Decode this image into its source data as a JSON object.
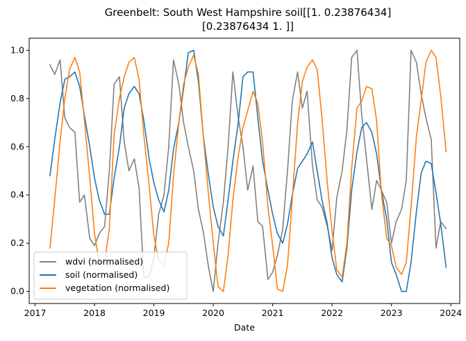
{
  "chart_data": {
    "type": "line",
    "title_lines": [
      "Greenbelt: South West Hampshire soil[[1.         0.23876434]",
      "[0.23876434 1.        ]]"
    ],
    "xlabel": "Date",
    "ylabel": "",
    "x_tick_labels": [
      "2017",
      "2018",
      "2019",
      "2020",
      "2021",
      "2022",
      "2023",
      "2024"
    ],
    "x_tick_values": [
      2017,
      2018,
      2019,
      2020,
      2021,
      2022,
      2023,
      2024
    ],
    "xlim": [
      2016.9,
      2024.15
    ],
    "y_tick_labels": [
      "0.0",
      "0.2",
      "0.4",
      "0.6",
      "0.8",
      "1.0"
    ],
    "y_tick_values": [
      0.0,
      0.2,
      0.4,
      0.6,
      0.8,
      1.0
    ],
    "ylim": [
      -0.05,
      1.05
    ],
    "grid": false,
    "legend_position": "lower-left",
    "x": [
      2017.25,
      2017.33,
      2017.42,
      2017.5,
      2017.58,
      2017.67,
      2017.75,
      2017.83,
      2017.92,
      2018.0,
      2018.08,
      2018.17,
      2018.25,
      2018.33,
      2018.42,
      2018.5,
      2018.58,
      2018.67,
      2018.75,
      2018.83,
      2018.92,
      2019.0,
      2019.08,
      2019.17,
      2019.25,
      2019.33,
      2019.42,
      2019.5,
      2019.58,
      2019.67,
      2019.75,
      2019.83,
      2019.92,
      2020.0,
      2020.08,
      2020.17,
      2020.25,
      2020.33,
      2020.42,
      2020.5,
      2020.58,
      2020.67,
      2020.75,
      2020.83,
      2020.92,
      2021.0,
      2021.08,
      2021.17,
      2021.25,
      2021.33,
      2021.42,
      2021.5,
      2021.58,
      2021.67,
      2021.75,
      2021.83,
      2021.92,
      2022.0,
      2022.08,
      2022.17,
      2022.25,
      2022.33,
      2022.42,
      2022.5,
      2022.58,
      2022.67,
      2022.75,
      2022.83,
      2022.92,
      2023.0,
      2023.08,
      2023.17,
      2023.25,
      2023.33,
      2023.42,
      2023.5,
      2023.58,
      2023.67,
      2023.75,
      2023.83,
      2023.92
    ],
    "series": [
      {
        "name": "wdvi (normalised)",
        "color": "#808080",
        "values": [
          0.94,
          0.9,
          0.96,
          0.72,
          0.68,
          0.66,
          0.37,
          0.4,
          0.22,
          0.19,
          0.24,
          0.27,
          0.5,
          0.86,
          0.89,
          0.62,
          0.5,
          0.55,
          0.43,
          0.06,
          0.06,
          0.14,
          0.32,
          0.4,
          0.6,
          0.96,
          0.86,
          0.7,
          0.6,
          0.5,
          0.34,
          0.25,
          0.1,
          0.0,
          0.2,
          0.37,
          0.6,
          0.91,
          0.72,
          0.6,
          0.42,
          0.52,
          0.29,
          0.27,
          0.05,
          0.08,
          0.15,
          0.26,
          0.5,
          0.79,
          0.91,
          0.76,
          0.83,
          0.52,
          0.38,
          0.35,
          0.27,
          0.17,
          0.39,
          0.5,
          0.67,
          0.97,
          1.0,
          0.73,
          0.55,
          0.34,
          0.46,
          0.42,
          0.37,
          0.2,
          0.29,
          0.34,
          0.46,
          1.0,
          0.95,
          0.82,
          0.72,
          0.63,
          0.18,
          0.29,
          0.26
        ]
      },
      {
        "name": "soil (normalised)",
        "color": "#1f77b4",
        "values": [
          0.48,
          0.63,
          0.78,
          0.88,
          0.89,
          0.91,
          0.85,
          0.73,
          0.6,
          0.47,
          0.38,
          0.32,
          0.32,
          0.47,
          0.6,
          0.76,
          0.82,
          0.85,
          0.82,
          0.71,
          0.55,
          0.45,
          0.38,
          0.33,
          0.42,
          0.59,
          0.7,
          0.84,
          0.99,
          1.0,
          0.87,
          0.65,
          0.48,
          0.35,
          0.27,
          0.23,
          0.38,
          0.54,
          0.7,
          0.89,
          0.91,
          0.91,
          0.72,
          0.54,
          0.42,
          0.32,
          0.24,
          0.2,
          0.28,
          0.4,
          0.51,
          0.54,
          0.57,
          0.62,
          0.5,
          0.38,
          0.28,
          0.14,
          0.07,
          0.04,
          0.18,
          0.42,
          0.58,
          0.68,
          0.7,
          0.66,
          0.57,
          0.42,
          0.3,
          0.12,
          0.07,
          0.0,
          0.0,
          0.12,
          0.33,
          0.49,
          0.54,
          0.53,
          0.41,
          0.28,
          0.1
        ]
      },
      {
        "name": "vegetation (normalised)",
        "color": "#ff7f0e",
        "values": [
          0.18,
          0.38,
          0.62,
          0.8,
          0.92,
          0.97,
          0.91,
          0.71,
          0.47,
          0.24,
          0.12,
          0.12,
          0.26,
          0.65,
          0.8,
          0.89,
          0.95,
          0.97,
          0.88,
          0.65,
          0.44,
          0.23,
          0.13,
          0.11,
          0.2,
          0.48,
          0.7,
          0.86,
          0.93,
          0.98,
          0.9,
          0.65,
          0.4,
          0.2,
          0.02,
          0.0,
          0.15,
          0.38,
          0.56,
          0.68,
          0.75,
          0.83,
          0.78,
          0.62,
          0.35,
          0.19,
          0.01,
          0.0,
          0.11,
          0.38,
          0.7,
          0.87,
          0.93,
          0.96,
          0.92,
          0.72,
          0.45,
          0.25,
          0.09,
          0.06,
          0.2,
          0.51,
          0.76,
          0.79,
          0.85,
          0.84,
          0.71,
          0.41,
          0.22,
          0.19,
          0.1,
          0.07,
          0.12,
          0.35,
          0.64,
          0.79,
          0.95,
          1.0,
          0.97,
          0.81,
          0.58
        ]
      }
    ]
  }
}
